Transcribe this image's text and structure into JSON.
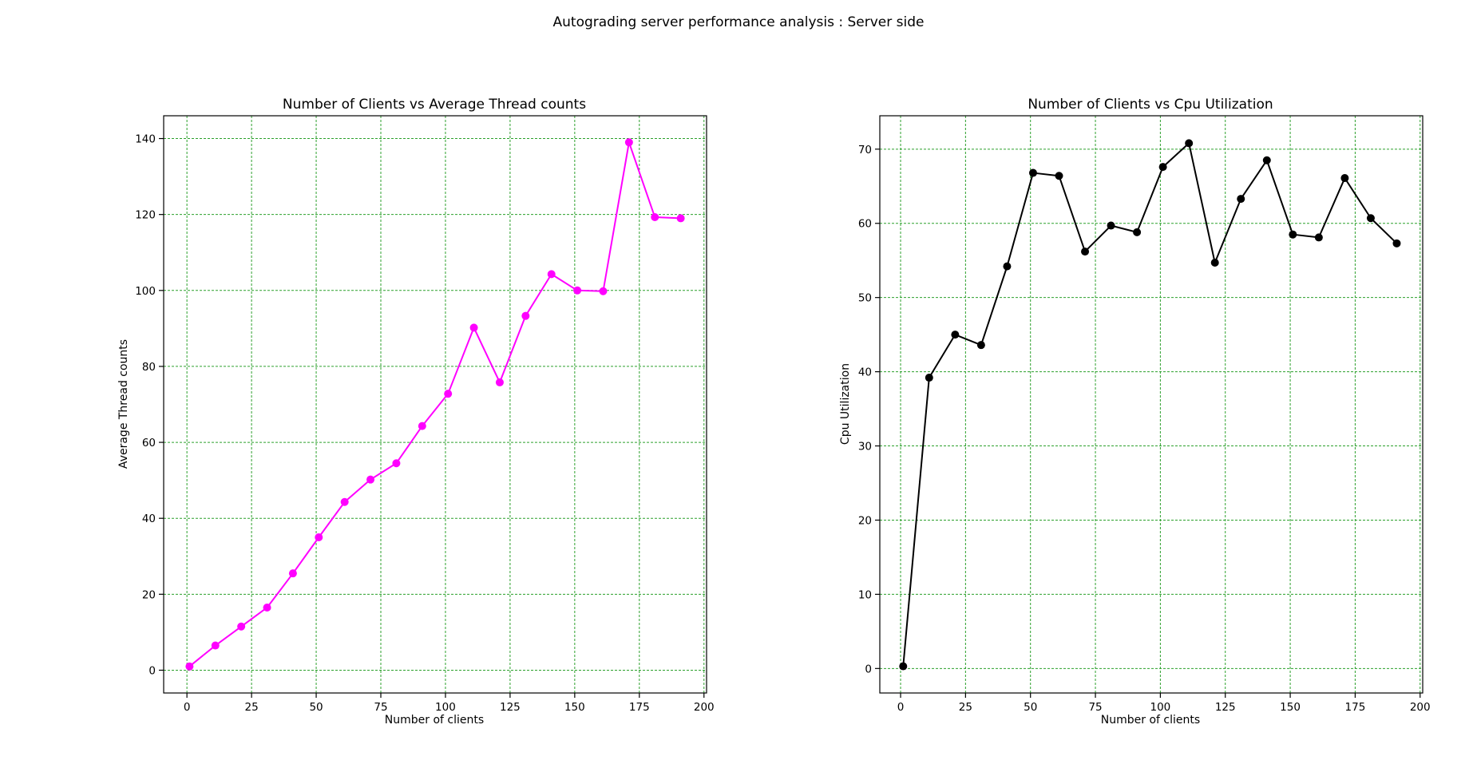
{
  "figure": {
    "suptitle": "Autograding server performance analysis : Server side",
    "grid_color": "#2ca02c"
  },
  "chart_data": [
    {
      "type": "line",
      "title": "Number of Clients vs Average Thread counts",
      "xlabel": "Number of clients",
      "ylabel": "Average Thread counts",
      "x": [
        1,
        11,
        21,
        31,
        41,
        51,
        61,
        71,
        81,
        91,
        101,
        111,
        121,
        131,
        141,
        151,
        161,
        171,
        181,
        191
      ],
      "series": [
        {
          "values": [
            1.0,
            6.5,
            11.5,
            16.5,
            25.5,
            35.0,
            44.3,
            50.2,
            54.5,
            64.3,
            72.8,
            90.2,
            75.8,
            93.3,
            104.3,
            100.0,
            99.8,
            139.0,
            119.3,
            119.0
          ],
          "color": "#ff00ff",
          "marker": "circle"
        }
      ],
      "xlim": [
        -9,
        201
      ],
      "ylim": [
        -6,
        146
      ],
      "xticks": [
        0,
        25,
        50,
        75,
        100,
        125,
        150,
        175,
        200
      ],
      "yticks": [
        0,
        20,
        40,
        60,
        80,
        100,
        120,
        140
      ],
      "grid": true
    },
    {
      "type": "line",
      "title": "Number of Clients vs Cpu Utilization",
      "xlabel": "Number of clients",
      "ylabel": "Cpu Utilization",
      "x": [
        1,
        11,
        21,
        31,
        41,
        51,
        61,
        71,
        81,
        91,
        101,
        111,
        121,
        131,
        141,
        151,
        161,
        171,
        181,
        191
      ],
      "series": [
        {
          "values": [
            0.3,
            39.2,
            45.0,
            43.6,
            54.2,
            66.8,
            66.4,
            56.2,
            59.7,
            58.8,
            67.6,
            70.8,
            54.7,
            63.3,
            68.5,
            58.5,
            58.1,
            66.1,
            60.7,
            57.3
          ],
          "color": "#000000",
          "marker": "circle"
        }
      ],
      "xlim": [
        -8,
        201
      ],
      "ylim": [
        -3.3,
        74.5
      ],
      "xticks": [
        0,
        25,
        50,
        75,
        100,
        125,
        150,
        175,
        200
      ],
      "yticks": [
        0,
        10,
        20,
        30,
        40,
        50,
        60,
        70
      ],
      "grid": true
    }
  ]
}
